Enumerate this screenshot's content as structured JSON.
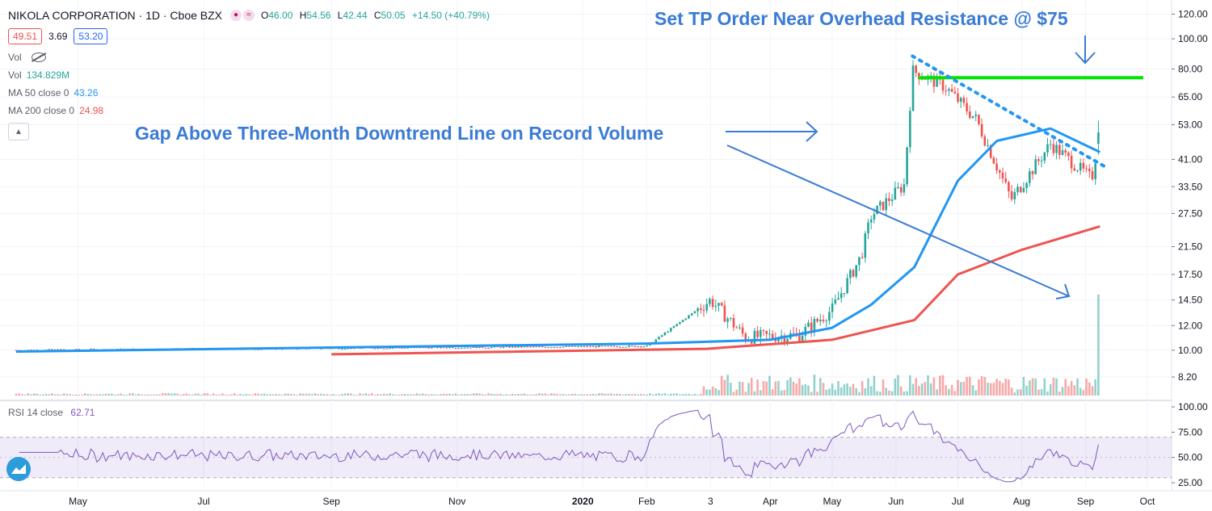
{
  "header": {
    "symbol": "NIKOLA CORPORATION · 1D · Cboe BZX",
    "ohlc": {
      "open_label": "O",
      "open": "46.00",
      "high_label": "H",
      "high": "54.56",
      "low_label": "L",
      "low": "42.44",
      "close_label": "C",
      "close": "50.05",
      "change": "+14.50 (+40.79%)"
    },
    "bid": "49.51",
    "spread": "3.69",
    "ask": "53.20"
  },
  "indicators": {
    "vol_hidden_label": "Vol",
    "vol_label": "Vol",
    "vol_value": "134.829M",
    "ma50_label": "MA 50 close 0",
    "ma50_value": "43.26",
    "ma200_label": "MA 200 close 0",
    "ma200_value": "24.98",
    "rsi_label": "RSI 14 close",
    "rsi_value": "62.71"
  },
  "colors": {
    "up": "#26a69a",
    "down": "#ef5350",
    "ma50": "#2196f3",
    "ma200": "#ef5350",
    "rsi": "#7e57c2",
    "annotation": "#3a7bd5",
    "resistance": "#00e600"
  },
  "annotations": {
    "tp_text": "Set TP Order Near Overhead Resistance @ $75",
    "gap_text": "Gap Above Three-Month Downtrend Line on Record Volume"
  },
  "chart_data": [
    {
      "type": "candlestick",
      "title": "NIKOLA CORPORATION · 1D · Cboe BZX",
      "y_scale": "log",
      "ylim": [
        8.0,
        120.0
      ],
      "y_ticks": [
        "120.00",
        "100.00",
        "80.00",
        "65.00",
        "53.00",
        "41.00",
        "33.50",
        "27.50",
        "21.50",
        "17.50",
        "14.50",
        "12.00",
        "10.00",
        "8.20"
      ],
      "x_ticks": [
        "May",
        "Jul",
        "Sep",
        "Nov",
        "2020",
        "Feb",
        "3",
        "Apr",
        "May",
        "Jun",
        "Jul",
        "Aug",
        "Sep",
        "Oct"
      ],
      "grid": true,
      "series": [
        {
          "name": "NIKOLA CORPORATION",
          "x_range": [
            "2019-04",
            "2020-09"
          ],
          "approx_close_path": [
            {
              "x": "2019-04",
              "y": 10.0
            },
            {
              "x": "2020-02",
              "y": 10.3
            },
            {
              "x": "2020-03-03",
              "y": 14.5
            },
            {
              "x": "2020-03-20",
              "y": 11.0
            },
            {
              "x": "2020-04-15",
              "y": 11.2
            },
            {
              "x": "2020-05-01",
              "y": 13.5
            },
            {
              "x": "2020-05-15",
              "y": 20.0
            },
            {
              "x": "2020-05-20",
              "y": 27.0
            },
            {
              "x": "2020-06-05",
              "y": 34.0
            },
            {
              "x": "2020-06-09",
              "y": 79.0
            },
            {
              "x": "2020-06-25",
              "y": 70.0
            },
            {
              "x": "2020-07-10",
              "y": 55.0
            },
            {
              "x": "2020-07-27",
              "y": 30.5
            },
            {
              "x": "2020-08-15",
              "y": 46.0
            },
            {
              "x": "2020-09-04",
              "y": 35.5
            },
            {
              "x": "2020-09-08",
              "y": 50.05
            }
          ]
        },
        {
          "name": "MA 50 close 0",
          "points": [
            {
              "x": "2019-04",
              "y": 9.9
            },
            {
              "x": "2020-02",
              "y": 10.5
            },
            {
              "x": "2020-04",
              "y": 10.8
            },
            {
              "x": "2020-05",
              "y": 11.8
            },
            {
              "x": "2020-05-20",
              "y": 14.0
            },
            {
              "x": "2020-06-10",
              "y": 18.5
            },
            {
              "x": "2020-07-01",
              "y": 35.0
            },
            {
              "x": "2020-07-20",
              "y": 47.0
            },
            {
              "x": "2020-08-15",
              "y": 51.5
            },
            {
              "x": "2020-09-08",
              "y": 43.26
            }
          ]
        },
        {
          "name": "MA 200 close 0",
          "points": [
            {
              "x": "2019-09",
              "y": 9.7
            },
            {
              "x": "2020-03",
              "y": 10.1
            },
            {
              "x": "2020-05-01",
              "y": 10.8
            },
            {
              "x": "2020-06-10",
              "y": 12.5
            },
            {
              "x": "2020-07-01",
              "y": 17.5
            },
            {
              "x": "2020-08-01",
              "y": 21.0
            },
            {
              "x": "2020-09-08",
              "y": 24.98
            }
          ]
        }
      ],
      "annotations": [
        {
          "text": "Set TP Order Near Overhead Resistance @ $75"
        },
        {
          "text": "Gap Above Three-Month Downtrend Line on Record Volume"
        },
        {
          "kind": "horizontal_line",
          "y": 75
        },
        {
          "kind": "dotted_trendline",
          "from": {
            "x": "2020-06-09",
            "y": 88
          },
          "to": {
            "x": "2020-09-10",
            "y": 39
          }
        }
      ]
    },
    {
      "type": "line",
      "title": "RSI 14 close",
      "ylim": [
        25,
        100
      ],
      "y_ticks": [
        "100.00",
        "75.00",
        "50.00",
        "25.00"
      ],
      "band": [
        30,
        70
      ],
      "series": [
        {
          "name": "RSI 14 close",
          "last": 62.71
        }
      ]
    }
  ]
}
